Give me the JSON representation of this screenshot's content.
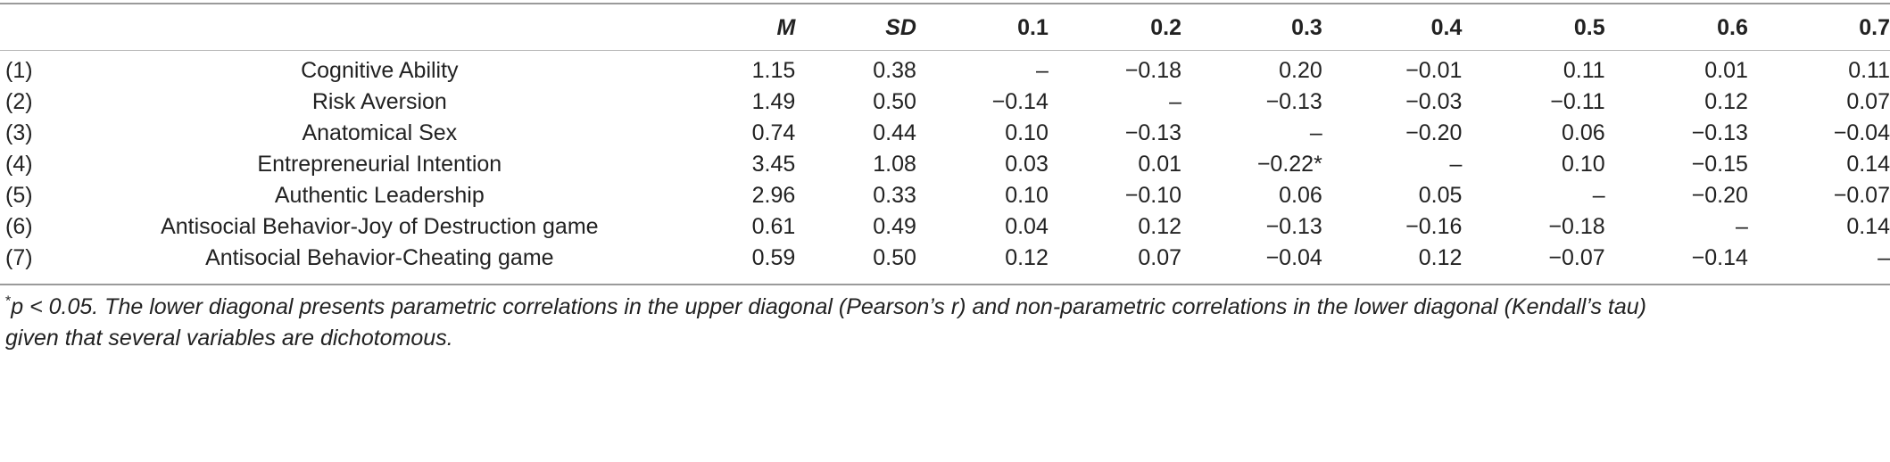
{
  "columns": {
    "mean": "M",
    "sd": "SD",
    "c1": "0.1",
    "c2": "0.2",
    "c3": "0.3",
    "c4": "0.4",
    "c5": "0.5",
    "c6": "0.6",
    "c7": "0.7"
  },
  "rows": [
    {
      "idx": "(1)",
      "label": "Cognitive Ability",
      "m": "1.15",
      "sd": "0.38",
      "c1": "–",
      "c2": "−0.18",
      "c3": "0.20",
      "c4": "−0.01",
      "c5": "0.11",
      "c6": "0.01",
      "c7": "0.11"
    },
    {
      "idx": "(2)",
      "label": "Risk Aversion",
      "m": "1.49",
      "sd": "0.50",
      "c1": "−0.14",
      "c2": "–",
      "c3": "−0.13",
      "c4": "−0.03",
      "c5": "−0.11",
      "c6": "0.12",
      "c7": "0.07"
    },
    {
      "idx": "(3)",
      "label": "Anatomical Sex",
      "m": "0.74",
      "sd": "0.44",
      "c1": "0.10",
      "c2": "−0.13",
      "c3": "–",
      "c4": "−0.20",
      "c5": "0.06",
      "c6": "−0.13",
      "c7": "−0.04"
    },
    {
      "idx": "(4)",
      "label": "Entrepreneurial Intention",
      "m": "3.45",
      "sd": "1.08",
      "c1": "0.03",
      "c2": "0.01",
      "c3": "−0.22*",
      "c4": "–",
      "c5": "0.10",
      "c6": "−0.15",
      "c7": "0.14"
    },
    {
      "idx": "(5)",
      "label": "Authentic Leadership",
      "m": "2.96",
      "sd": "0.33",
      "c1": "0.10",
      "c2": "−0.10",
      "c3": "0.06",
      "c4": "0.05",
      "c5": "–",
      "c6": "−0.20",
      "c7": "−0.07"
    },
    {
      "idx": "(6)",
      "label": "Antisocial Behavior-Joy of Destruction game",
      "m": "0.61",
      "sd": "0.49",
      "c1": "0.04",
      "c2": "0.12",
      "c3": "−0.13",
      "c4": "−0.16",
      "c5": "−0.18",
      "c6": "–",
      "c7": "0.14"
    },
    {
      "idx": "(7)",
      "label": "Antisocial Behavior-Cheating game",
      "m": "0.59",
      "sd": "0.50",
      "c1": "0.12",
      "c2": "0.07",
      "c3": "−0.04",
      "c4": "0.12",
      "c5": "−0.07",
      "c6": "−0.14",
      "c7": "–"
    }
  ],
  "footnote": {
    "marker": "*",
    "text": "p < 0.05. The lower diagonal presents parametric correlations in the upper diagonal (Pearson’s r) and non-parametric correlations in the lower diagonal (Kendall’s tau)",
    "text2": "given that several variables are dichotomous."
  }
}
